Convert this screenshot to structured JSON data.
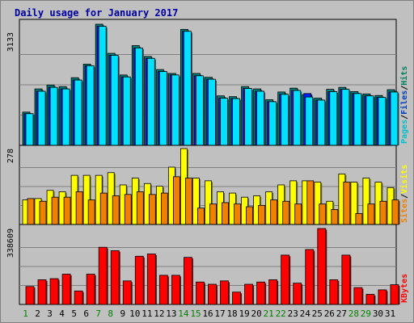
{
  "chart_data": {
    "type": "bar",
    "title": "Daily usage for January 2017",
    "categories": [
      "1",
      "2",
      "3",
      "4",
      "5",
      "6",
      "7",
      "8",
      "9",
      "10",
      "11",
      "12",
      "13",
      "14",
      "15",
      "16",
      "17",
      "18",
      "19",
      "20",
      "21",
      "22",
      "23",
      "24",
      "25",
      "26",
      "27",
      "28",
      "29",
      "30",
      "31"
    ],
    "weekend_days": [
      "1",
      "7",
      "8",
      "14",
      "15",
      "21",
      "22",
      "28",
      "29"
    ],
    "panels": [
      {
        "name": "hits-files-pages",
        "ymax_label": "3133",
        "ymax": 3133,
        "legend": [
          "Pages",
          "/",
          "Files",
          "/",
          "Hits"
        ],
        "legend_colors": [
          "#00c0d0",
          "#000000",
          "#0040c0",
          "#000000",
          "#008060"
        ],
        "series": [
          {
            "name": "Hits",
            "color": "#008080",
            "values": [
              860,
              1460,
              1560,
              1520,
              1750,
              2100,
              3133,
              2380,
              1820,
              2580,
              2300,
              1960,
              1860,
              3000,
              1860,
              1760,
              1280,
              1260,
              1520,
              1460,
              1180,
              1380,
              1480,
              1310,
              1220,
              1450,
              1500,
              1390,
              1330,
              1290,
              1440
            ]
          },
          {
            "name": "Files",
            "color": "#0020ff",
            "values": [
              820,
              1400,
              1500,
              1460,
              1690,
              2060,
              3080,
              2330,
              1770,
              2520,
              2250,
              1910,
              1820,
              2950,
              1800,
              1710,
              1220,
              1210,
              1470,
              1400,
              1130,
              1320,
              1420,
              1340,
              1170,
              1390,
              1450,
              1340,
              1280,
              1240,
              1380
            ]
          },
          {
            "name": "Pages",
            "color": "#00e0ff",
            "values": [
              820,
              1400,
              1500,
              1460,
              1690,
              2060,
              3080,
              2330,
              1770,
              2520,
              2250,
              1910,
              1820,
              2950,
              1800,
              1710,
              1220,
              1210,
              1470,
              1400,
              1130,
              1320,
              1420,
              1250,
              1170,
              1390,
              1450,
              1340,
              1280,
              1240,
              1380
            ]
          }
        ]
      },
      {
        "name": "visits-sites",
        "ymax_label": "278",
        "ymax": 278,
        "legend": [
          "Sites",
          "/",
          "Visits"
        ],
        "legend_colors": [
          "#f08000",
          "#000000",
          "#ffff00"
        ],
        "series": [
          {
            "name": "Visits",
            "color": "#ffff00",
            "values": [
              90,
              95,
              125,
              120,
              180,
              180,
              180,
              190,
              145,
              170,
              150,
              140,
              210,
              278,
              170,
              160,
              120,
              115,
              100,
              105,
              120,
              145,
              160,
              160,
              155,
              85,
              185,
              155,
              170,
              155,
              135
            ]
          },
          {
            "name": "Sites",
            "color": "#f08000",
            "values": [
              95,
              85,
              100,
              100,
              120,
              90,
              115,
              105,
              110,
              120,
              110,
              115,
              175,
              170,
              60,
              75,
              80,
              75,
              65,
              70,
              90,
              85,
              75,
              160,
              75,
              55,
              155,
              40,
              75,
              85,
              90
            ]
          }
        ]
      },
      {
        "name": "kbytes",
        "ymax_label": "338609",
        "ymax": 338609,
        "legend": [
          "KBytes"
        ],
        "legend_colors": [
          "#ff0000"
        ],
        "series": [
          {
            "name": "KBytes",
            "color": "#ff0000",
            "values": [
              80000,
              110000,
              115000,
              135000,
              60000,
              135000,
              255000,
              240000,
              105000,
              215000,
              225000,
              130000,
              130000,
              210000,
              100000,
              90000,
              105000,
              55000,
              90000,
              100000,
              110000,
              220000,
              95000,
              245000,
              338609,
              110000,
              220000,
              75000,
              45000,
              65000,
              88000
            ]
          }
        ]
      }
    ]
  }
}
